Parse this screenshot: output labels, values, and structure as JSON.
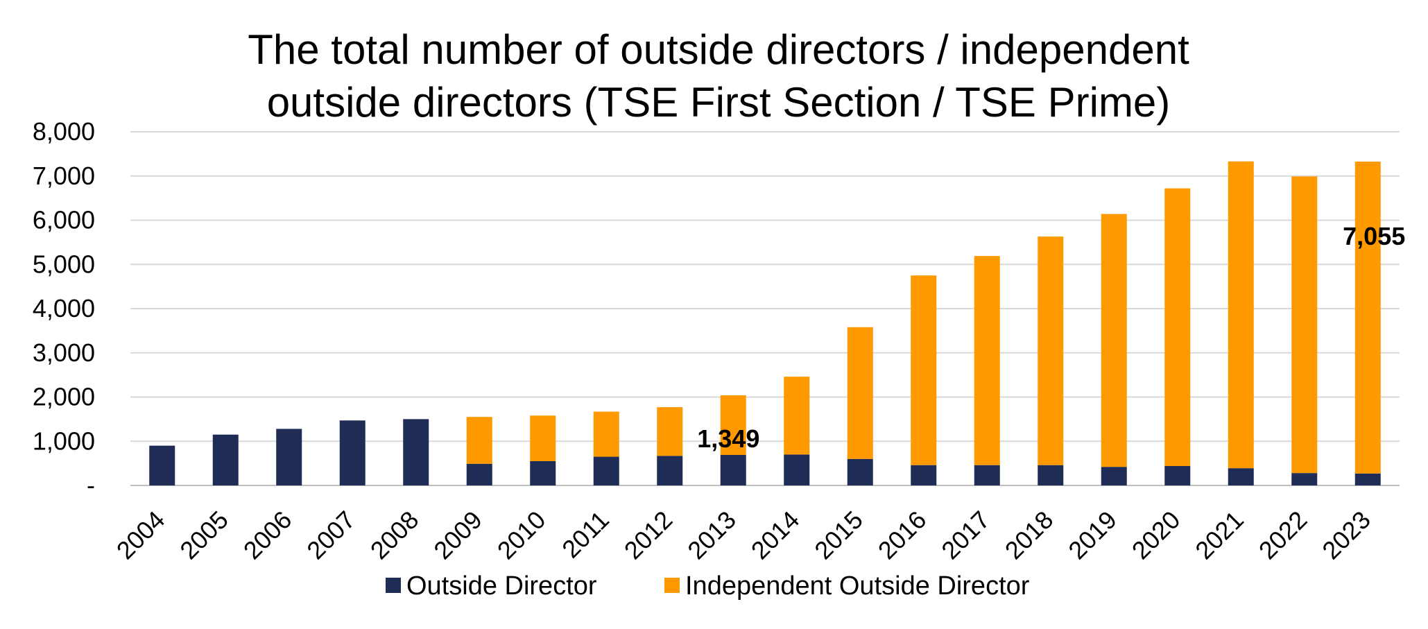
{
  "chart_data": {
    "type": "bar",
    "stacked": true,
    "title_lines": [
      "The total number of outside directors / independent",
      "outside directors (TSE First Section / TSE Prime)"
    ],
    "categories": [
      "2004",
      "2005",
      "2006",
      "2007",
      "2008",
      "2009",
      "2010",
      "2011",
      "2012",
      "2013",
      "2014",
      "2015",
      "2016",
      "2017",
      "2018",
      "2019",
      "2020",
      "2021",
      "2022",
      "2023"
    ],
    "series": [
      {
        "name": "Outside Director",
        "color": "#1f2d56",
        "values": [
          900,
          1150,
          1280,
          1470,
          1500,
          490,
          550,
          650,
          670,
          690,
          700,
          600,
          460,
          460,
          460,
          420,
          440,
          390,
          280,
          270
        ]
      },
      {
        "name": "Independent Outside Director",
        "color": "#ff9900",
        "values": [
          0,
          0,
          0,
          0,
          0,
          1060,
          1030,
          1020,
          1100,
          1349,
          1760,
          2980,
          4290,
          4730,
          5170,
          5720,
          6280,
          6940,
          6710,
          7055
        ]
      }
    ],
    "ylim": [
      0,
      8000
    ],
    "yticks": [
      0,
      1000,
      2000,
      3000,
      4000,
      5000,
      6000,
      7000,
      8000
    ],
    "ytick_labels": [
      "-",
      "1,000",
      "2,000",
      "3,000",
      "4,000",
      "5,000",
      "6,000",
      "7,000",
      "8,000"
    ],
    "grid": true,
    "legend_position": "bottom",
    "annotations": [
      {
        "category": "2013",
        "text": "1,349"
      },
      {
        "category": "2023",
        "text": "7,055"
      }
    ]
  }
}
